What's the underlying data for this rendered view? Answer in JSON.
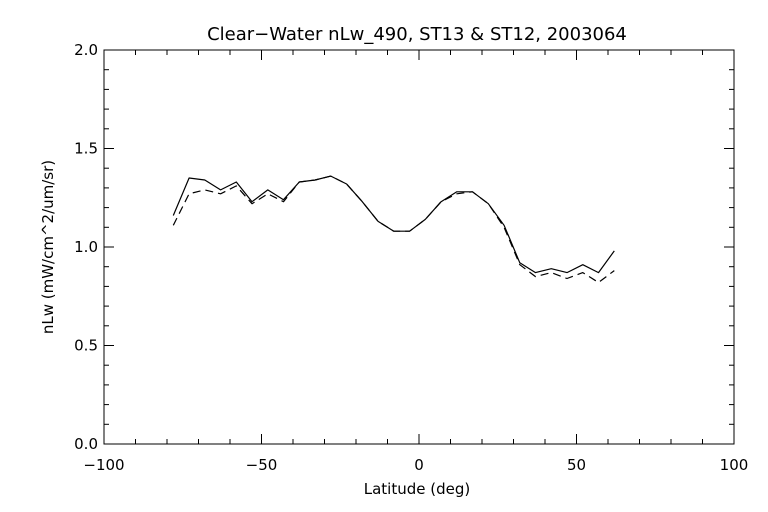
{
  "chart_data": {
    "type": "line",
    "title": "Clear−Water nLw_490, ST13 & ST12, 2003064",
    "xlabel": "Latitude (deg)",
    "ylabel": "nLw (mW/cm^2/um/sr)",
    "xlim": [
      -100,
      100
    ],
    "ylim": [
      0.0,
      2.0
    ],
    "x_ticks": [
      -100,
      -50,
      0,
      50,
      100
    ],
    "x_tick_labels": [
      "−100",
      "−50",
      "0",
      "50",
      "100"
    ],
    "y_ticks": [
      0.0,
      0.5,
      1.0,
      1.5,
      2.0
    ],
    "y_tick_labels": [
      "0.0",
      "0.5",
      "1.0",
      "1.5",
      "2.0"
    ],
    "grid": false,
    "series": [
      {
        "style": "solid",
        "color": "#000000",
        "x": [
          -78,
          -73,
          -68,
          -63,
          -58,
          -53,
          -48,
          -43,
          -38,
          -33,
          -28,
          -23,
          -18,
          -13,
          -8,
          -3,
          2,
          7,
          12,
          17,
          22,
          27,
          32,
          37,
          42,
          47,
          52,
          57,
          62
        ],
        "y": [
          1.16,
          1.35,
          1.34,
          1.29,
          1.33,
          1.23,
          1.29,
          1.24,
          1.33,
          1.34,
          1.36,
          1.32,
          1.23,
          1.13,
          1.08,
          1.08,
          1.14,
          1.23,
          1.28,
          1.28,
          1.22,
          1.11,
          0.92,
          0.87,
          0.89,
          0.87,
          0.91,
          0.87,
          0.98
        ]
      },
      {
        "style": "dashed",
        "color": "#000000",
        "x": [
          -78,
          -73,
          -68,
          -63,
          -58,
          -53,
          -48,
          -43,
          -38,
          -33,
          -28,
          -23,
          -18,
          -13,
          -8,
          -3,
          2,
          7,
          12,
          17,
          22,
          27,
          32,
          37,
          42,
          47,
          52,
          57,
          62
        ],
        "y": [
          1.11,
          1.27,
          1.29,
          1.27,
          1.31,
          1.22,
          1.27,
          1.23,
          1.33,
          1.34,
          1.36,
          1.32,
          1.23,
          1.13,
          1.08,
          1.08,
          1.14,
          1.23,
          1.27,
          1.28,
          1.22,
          1.1,
          0.91,
          0.85,
          0.87,
          0.84,
          0.87,
          0.82,
          0.88
        ]
      }
    ]
  }
}
